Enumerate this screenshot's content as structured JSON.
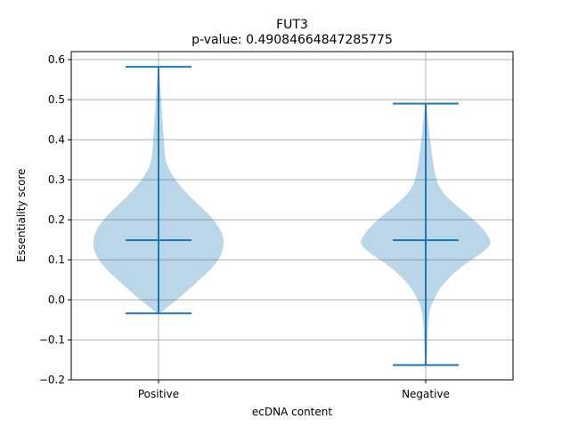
{
  "chart_data": {
    "type": "violin",
    "title": "FUT3",
    "subtitle": "p-value: 0.49084664847285775",
    "xlabel": "ecDNA content",
    "ylabel": "Essentiality score",
    "categories": [
      "Positive",
      "Negative"
    ],
    "ylim": [
      -0.2,
      0.62
    ],
    "yticks": [
      -0.2,
      -0.1,
      0.0,
      0.1,
      0.2,
      0.3,
      0.4,
      0.5,
      0.6
    ],
    "ytick_labels": [
      "−0.2",
      "−0.1",
      "0.0",
      "0.1",
      "0.2",
      "0.3",
      "0.4",
      "0.5",
      "0.6"
    ],
    "grid": true,
    "colors": {
      "violin_fill": "#1f77b4",
      "violin_opacity": 0.3,
      "line": "#1f77b4",
      "grid": "#b0b0b0"
    },
    "violins": [
      {
        "category": "Positive",
        "min": -0.034,
        "max": 0.582,
        "median": 0.149,
        "density_profile": [
          [
            -0.034,
            0.02
          ],
          [
            -0.02,
            0.12
          ],
          [
            0.0,
            0.28
          ],
          [
            0.02,
            0.42
          ],
          [
            0.05,
            0.62
          ],
          [
            0.08,
            0.82
          ],
          [
            0.11,
            0.95
          ],
          [
            0.14,
            1.0
          ],
          [
            0.17,
            0.96
          ],
          [
            0.2,
            0.84
          ],
          [
            0.23,
            0.66
          ],
          [
            0.26,
            0.46
          ],
          [
            0.29,
            0.3
          ],
          [
            0.32,
            0.17
          ],
          [
            0.35,
            0.1
          ],
          [
            0.4,
            0.08
          ],
          [
            0.45,
            0.06
          ],
          [
            0.5,
            0.04
          ],
          [
            0.55,
            0.02
          ],
          [
            0.582,
            0.01
          ]
        ]
      },
      {
        "category": "Negative",
        "min": -0.163,
        "max": 0.49,
        "median": 0.149,
        "density_profile": [
          [
            -0.163,
            0.01
          ],
          [
            -0.12,
            0.02
          ],
          [
            -0.08,
            0.03
          ],
          [
            -0.05,
            0.04
          ],
          [
            -0.02,
            0.07
          ],
          [
            0.0,
            0.12
          ],
          [
            0.03,
            0.22
          ],
          [
            0.06,
            0.38
          ],
          [
            0.09,
            0.6
          ],
          [
            0.12,
            0.88
          ],
          [
            0.14,
            1.0
          ],
          [
            0.16,
            0.95
          ],
          [
            0.19,
            0.8
          ],
          [
            0.22,
            0.58
          ],
          [
            0.25,
            0.36
          ],
          [
            0.28,
            0.2
          ],
          [
            0.32,
            0.13
          ],
          [
            0.37,
            0.09
          ],
          [
            0.42,
            0.05
          ],
          [
            0.46,
            0.03
          ],
          [
            0.49,
            0.01
          ]
        ]
      }
    ]
  }
}
